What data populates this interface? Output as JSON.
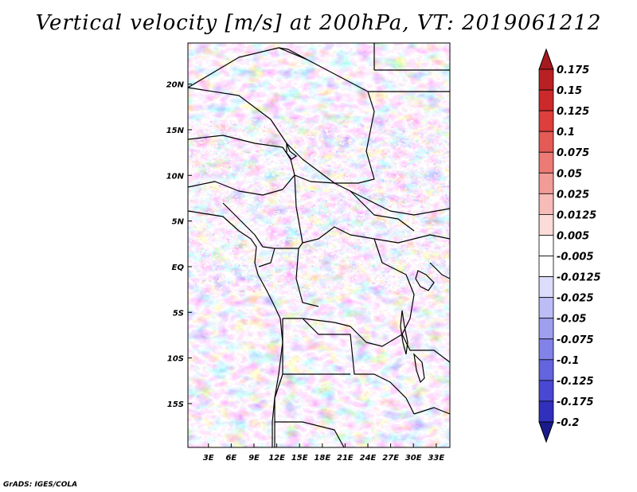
{
  "title": "Vertical velocity [m/s] at 200hPa, VT: 2019061212",
  "credit": "GrADS: IGES/COLA",
  "map": {
    "lat_ticks": [
      {
        "value": 20,
        "label": "20N"
      },
      {
        "value": 15,
        "label": "15N"
      },
      {
        "value": 10,
        "label": "10N"
      },
      {
        "value": 5,
        "label": "5N"
      },
      {
        "value": 0,
        "label": "EQ"
      },
      {
        "value": -5,
        "label": "5S"
      },
      {
        "value": -10,
        "label": "10S"
      },
      {
        "value": -15,
        "label": "15S"
      }
    ],
    "lon_ticks": [
      {
        "value": 3,
        "label": "3E"
      },
      {
        "value": 6,
        "label": "6E"
      },
      {
        "value": 9,
        "label": "9E"
      },
      {
        "value": 12,
        "label": "12E"
      },
      {
        "value": 15,
        "label": "15E"
      },
      {
        "value": 18,
        "label": "18E"
      },
      {
        "value": 21,
        "label": "21E"
      },
      {
        "value": 24,
        "label": "24E"
      },
      {
        "value": 27,
        "label": "27E"
      },
      {
        "value": 30,
        "label": "30E"
      },
      {
        "value": 33,
        "label": "33E"
      }
    ],
    "lon_range": [
      0.3,
      34.8
    ],
    "lat_range": [
      -19.8,
      24.5
    ]
  },
  "colorbar": {
    "levels": [
      {
        "label": "0.175",
        "color": "#a51a1f"
      },
      {
        "label": "0.15",
        "color": "#b82024"
      },
      {
        "label": "0.125",
        "color": "#cc2a2a"
      },
      {
        "label": "0.1",
        "color": "#dc3f3c"
      },
      {
        "label": "0.075",
        "color": "#e45a55"
      },
      {
        "label": "0.05",
        "color": "#ec7b76"
      },
      {
        "label": "0.025",
        "color": "#f29c97"
      },
      {
        "label": "0.0125",
        "color": "#f7bcb8"
      },
      {
        "label": "0.005",
        "color": "#fbdcd9"
      },
      {
        "label": "-0.005",
        "color": "#ffffff"
      },
      {
        "label": "-0.0125",
        "color": "#dcdcfb"
      },
      {
        "label": "-0.025",
        "color": "#bdbdf6"
      },
      {
        "label": "-0.05",
        "color": "#9f9ff0"
      },
      {
        "label": "-0.075",
        "color": "#8282e8"
      },
      {
        "label": "-0.1",
        "color": "#6464df"
      },
      {
        "label": "-0.125",
        "color": "#4848d2"
      },
      {
        "label": "-0.175",
        "color": "#3030bd"
      },
      {
        "label": "-0.2",
        "color": "#1e1ea0"
      }
    ],
    "top_triangle_color": "#a51a1f",
    "bottom_triangle_color": "#1a1a8c"
  }
}
